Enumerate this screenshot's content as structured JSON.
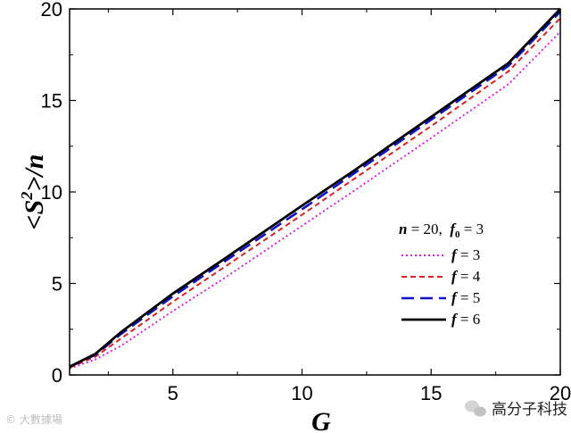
{
  "chart_data": {
    "type": "line",
    "title": "",
    "xlabel": "G",
    "ylabel_parts": {
      "open": "<",
      "var": "S",
      "sup": "2",
      "close": ">/",
      "tail": "n"
    },
    "xlim": [
      1,
      20
    ],
    "ylim": [
      0,
      20
    ],
    "xticks": [
      5,
      10,
      15,
      20
    ],
    "yticks": [
      0,
      5,
      10,
      15,
      20
    ],
    "grid": false,
    "legend": {
      "placement": "center-right",
      "header": {
        "n_sym": "n",
        "n_val": " = 20,  ",
        "f0_sym": "f",
        "f0_sub": "0",
        "f0_val": " = 3"
      }
    },
    "series": [
      {
        "name": "f = 3",
        "sym": "f",
        "val": " = 3",
        "color": "#e020e0",
        "dash": "dotted",
        "x": [
          1,
          2,
          3,
          5,
          7,
          10,
          12,
          15,
          18,
          20
        ],
        "y": [
          0.35,
          0.85,
          1.6,
          3.5,
          5.3,
          8.15,
          10.05,
          12.95,
          15.9,
          18.75
        ]
      },
      {
        "name": "f = 4",
        "sym": "f",
        "val": " = 4",
        "color": "#e02020",
        "dash": "short",
        "x": [
          1,
          2,
          3,
          5,
          7,
          10,
          12,
          15,
          18,
          20
        ],
        "y": [
          0.4,
          1.0,
          2.0,
          4.0,
          5.9,
          8.75,
          10.7,
          13.6,
          16.6,
          19.5
        ]
      },
      {
        "name": "f = 5",
        "sym": "f",
        "val": " = 5",
        "color": "#1010d0",
        "dash": "long",
        "x": [
          1,
          2,
          3,
          5,
          7,
          10,
          12,
          15,
          18,
          20
        ],
        "y": [
          0.45,
          1.1,
          2.25,
          4.3,
          6.2,
          9.05,
          11.0,
          13.95,
          16.9,
          19.85
        ]
      },
      {
        "name": "f = 6",
        "sym": "f",
        "val": " = 6",
        "color": "#000000",
        "dash": "solid",
        "x": [
          1,
          2,
          3,
          5,
          7,
          10,
          12,
          15,
          18,
          20
        ],
        "y": [
          0.45,
          1.15,
          2.35,
          4.45,
          6.35,
          9.25,
          11.15,
          14.1,
          17.05,
          20.0
        ]
      }
    ]
  },
  "watermark": {
    "left": "© 大數據場",
    "right": "高分子科技"
  }
}
